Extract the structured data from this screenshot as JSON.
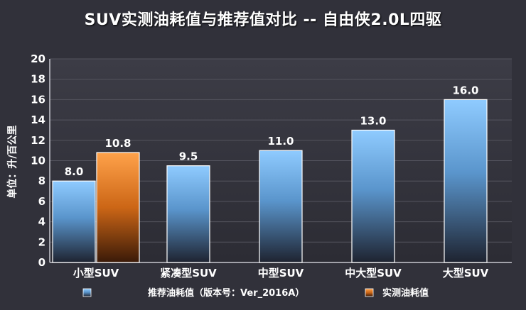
{
  "chart_data": {
    "type": "bar",
    "title": "SUV实测油耗值与推荐值对比 -- 自由侠2.0L四驱",
    "ylabel": "单位：升/百公里",
    "xlabel": "",
    "ylim": [
      0,
      20
    ],
    "yticks": [
      0,
      2,
      4,
      6,
      8,
      10,
      12,
      14,
      16,
      18,
      20
    ],
    "grid": true,
    "legend_position": "bottom",
    "categories": [
      "小型SUV",
      "紧凑型SUV",
      "中型SUV",
      "中大型SUV",
      "大型SUV"
    ],
    "bars": [
      {
        "category": "小型SUV",
        "series": "推荐油耗值（版本号：Ver_2016A）",
        "value": 8.0,
        "label": "8.0"
      },
      {
        "category": "小型SUV",
        "series": "实测油耗值",
        "value": 10.8,
        "label": "10.8"
      },
      {
        "category": "紧凑型SUV",
        "series": "推荐油耗值（版本号：Ver_2016A）",
        "value": 9.5,
        "label": "9.5"
      },
      {
        "category": "中型SUV",
        "series": "推荐油耗值（版本号：Ver_2016A）",
        "value": 11.0,
        "label": "11.0"
      },
      {
        "category": "中大型SUV",
        "series": "推荐油耗值（版本号：Ver_2016A）",
        "value": 13.0,
        "label": "13.0"
      },
      {
        "category": "大型SUV",
        "series": "推荐油耗值（版本号：Ver_2016A）",
        "value": 16.0,
        "label": "16.0"
      }
    ],
    "series": [
      {
        "name": "推荐油耗值（版本号：Ver_2016A）",
        "color": "#6fb6f2"
      },
      {
        "name": "实测油耗值",
        "color": "#f0892a"
      }
    ]
  }
}
